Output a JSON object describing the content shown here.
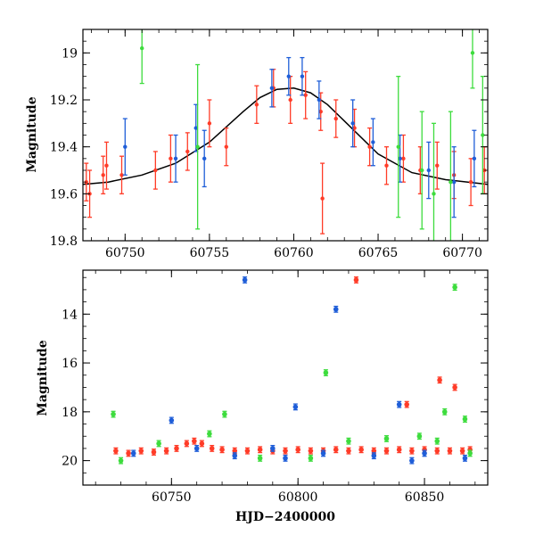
{
  "chart_data": [
    {
      "type": "scatter",
      "title": "",
      "xlabel": "",
      "ylabel": "Magnitude",
      "xlim": [
        60747.5,
        60771.5
      ],
      "ylim": [
        19.8,
        18.9
      ],
      "y_inverted": true,
      "x_ticks": [
        60750,
        60755,
        60760,
        60765,
        60770
      ],
      "x_tick_labels": [
        "60750",
        "60755",
        "60760",
        "60765",
        "60770"
      ],
      "y_ticks": [
        19.0,
        19.2,
        19.4,
        19.6,
        19.8
      ],
      "y_tick_labels": [
        "19",
        "19.2",
        "19.4",
        "19.6",
        "19.8"
      ],
      "grid": false,
      "legend": "none",
      "series": [
        {
          "color": "#ff3c28",
          "points": [
            {
              "x": 60747.7,
              "y": 19.55,
              "e": 0.08
            },
            {
              "x": 60747.9,
              "y": 19.6,
              "e": 0.1
            },
            {
              "x": 60748.7,
              "y": 19.52,
              "e": 0.08
            },
            {
              "x": 60748.9,
              "y": 19.48,
              "e": 0.1
            },
            {
              "x": 60749.8,
              "y": 19.52,
              "e": 0.08
            },
            {
              "x": 60751.8,
              "y": 19.5,
              "e": 0.08
            },
            {
              "x": 60752.7,
              "y": 19.45,
              "e": 0.1
            },
            {
              "x": 60753.7,
              "y": 19.42,
              "e": 0.08
            },
            {
              "x": 60755.0,
              "y": 19.3,
              "e": 0.1
            },
            {
              "x": 60756.0,
              "y": 19.4,
              "e": 0.08
            },
            {
              "x": 60757.8,
              "y": 19.22,
              "e": 0.08
            },
            {
              "x": 60758.8,
              "y": 19.15,
              "e": 0.08
            },
            {
              "x": 60759.8,
              "y": 19.2,
              "e": 0.1
            },
            {
              "x": 60760.7,
              "y": 19.18,
              "e": 0.1
            },
            {
              "x": 60761.6,
              "y": 19.25,
              "e": 0.08
            },
            {
              "x": 60762.5,
              "y": 19.28,
              "e": 0.08
            },
            {
              "x": 60763.6,
              "y": 19.32,
              "e": 0.08
            },
            {
              "x": 60764.5,
              "y": 19.4,
              "e": 0.08
            },
            {
              "x": 60765.5,
              "y": 19.48,
              "e": 0.08
            },
            {
              "x": 60766.5,
              "y": 19.45,
              "e": 0.1
            },
            {
              "x": 60767.5,
              "y": 19.5,
              "e": 0.1
            },
            {
              "x": 60768.5,
              "y": 19.48,
              "e": 0.1
            },
            {
              "x": 60769.5,
              "y": 19.52,
              "e": 0.1
            },
            {
              "x": 60770.5,
              "y": 19.55,
              "e": 0.1
            },
            {
              "x": 60771.3,
              "y": 19.5,
              "e": 0.1
            },
            {
              "x": 60761.7,
              "y": 19.62,
              "e": 0.15
            }
          ]
        },
        {
          "color": "#1f5ed8",
          "points": [
            {
              "x": 60750.0,
              "y": 19.4,
              "e": 0.12
            },
            {
              "x": 60753.0,
              "y": 19.45,
              "e": 0.1
            },
            {
              "x": 60754.2,
              "y": 19.32,
              "e": 0.1
            },
            {
              "x": 60754.7,
              "y": 19.45,
              "e": 0.12
            },
            {
              "x": 60758.7,
              "y": 19.15,
              "e": 0.08
            },
            {
              "x": 60759.7,
              "y": 19.1,
              "e": 0.08
            },
            {
              "x": 60760.5,
              "y": 19.1,
              "e": 0.08
            },
            {
              "x": 60761.5,
              "y": 19.2,
              "e": 0.08
            },
            {
              "x": 60763.5,
              "y": 19.3,
              "e": 0.1
            },
            {
              "x": 60764.7,
              "y": 19.38,
              "e": 0.1
            },
            {
              "x": 60766.3,
              "y": 19.45,
              "e": 0.1
            },
            {
              "x": 60768.0,
              "y": 19.5,
              "e": 0.12
            },
            {
              "x": 60769.5,
              "y": 19.55,
              "e": 0.15
            },
            {
              "x": 60770.7,
              "y": 19.45,
              "e": 0.12
            }
          ]
        },
        {
          "color": "#3ddc3d",
          "points": [
            {
              "x": 60751.0,
              "y": 18.98,
              "e": 0.15
            },
            {
              "x": 60754.3,
              "y": 19.4,
              "e": 0.35
            },
            {
              "x": 60766.2,
              "y": 19.4,
              "e": 0.3
            },
            {
              "x": 60767.6,
              "y": 19.5,
              "e": 0.25
            },
            {
              "x": 60768.3,
              "y": 19.6,
              "e": 0.3
            },
            {
              "x": 60769.3,
              "y": 19.55,
              "e": 0.3
            },
            {
              "x": 60770.6,
              "y": 19.0,
              "e": 0.15
            },
            {
              "x": 60771.2,
              "y": 19.35,
              "e": 0.25
            }
          ]
        }
      ],
      "model_curve": {
        "color": "#000000",
        "x": [
          60747.5,
          60749,
          60751,
          60753,
          60755,
          60757,
          60758,
          60759,
          60760,
          60761,
          60762,
          60763,
          60765,
          60767,
          60769,
          60771.5
        ],
        "y": [
          19.56,
          19.55,
          19.52,
          19.47,
          19.38,
          19.25,
          19.19,
          19.155,
          19.15,
          19.17,
          19.22,
          19.29,
          19.43,
          19.51,
          19.54,
          19.56
        ]
      }
    },
    {
      "type": "scatter",
      "title": "",
      "xlabel": "HJD−2400000",
      "ylabel": "Magnitude",
      "xlim": [
        60715,
        60875
      ],
      "ylim": [
        21.0,
        12.2
      ],
      "y_inverted": true,
      "x_ticks": [
        60750,
        60800,
        60850
      ],
      "x_tick_labels": [
        "60750",
        "60800",
        "60850"
      ],
      "y_ticks": [
        14,
        16,
        18,
        20
      ],
      "y_tick_labels": [
        "14",
        "16",
        "18",
        "20"
      ],
      "grid": false,
      "legend": "none",
      "series": [
        {
          "color": "#ff3c28",
          "points": [
            {
              "x": 60728,
              "y": 19.6
            },
            {
              "x": 60733,
              "y": 19.7
            },
            {
              "x": 60738,
              "y": 19.6
            },
            {
              "x": 60743,
              "y": 19.65
            },
            {
              "x": 60748,
              "y": 19.6
            },
            {
              "x": 60752,
              "y": 19.5
            },
            {
              "x": 60756,
              "y": 19.3
            },
            {
              "x": 60759,
              "y": 19.2
            },
            {
              "x": 60762,
              "y": 19.3
            },
            {
              "x": 60766,
              "y": 19.5
            },
            {
              "x": 60770,
              "y": 19.55
            },
            {
              "x": 60775,
              "y": 19.6
            },
            {
              "x": 60780,
              "y": 19.6
            },
            {
              "x": 60785,
              "y": 19.55
            },
            {
              "x": 60790,
              "y": 19.6
            },
            {
              "x": 60795,
              "y": 19.6
            },
            {
              "x": 60800,
              "y": 19.55
            },
            {
              "x": 60805,
              "y": 19.6
            },
            {
              "x": 60810,
              "y": 19.6
            },
            {
              "x": 60815,
              "y": 19.55
            },
            {
              "x": 60820,
              "y": 19.6
            },
            {
              "x": 60825,
              "y": 19.55
            },
            {
              "x": 60830,
              "y": 19.6
            },
            {
              "x": 60835,
              "y": 19.6
            },
            {
              "x": 60840,
              "y": 19.55
            },
            {
              "x": 60845,
              "y": 19.6
            },
            {
              "x": 60850,
              "y": 19.55
            },
            {
              "x": 60855,
              "y": 19.6
            },
            {
              "x": 60860,
              "y": 19.6
            },
            {
              "x": 60865,
              "y": 19.6
            },
            {
              "x": 60868,
              "y": 19.55
            },
            {
              "x": 60823,
              "y": 12.6
            },
            {
              "x": 60856,
              "y": 16.7
            },
            {
              "x": 60862,
              "y": 17.0
            },
            {
              "x": 60843,
              "y": 17.7
            }
          ]
        },
        {
          "color": "#1f5ed8",
          "points": [
            {
              "x": 60750,
              "y": 18.35
            },
            {
              "x": 60779,
              "y": 12.6
            },
            {
              "x": 60799,
              "y": 17.8
            },
            {
              "x": 60815,
              "y": 13.8
            },
            {
              "x": 60840,
              "y": 17.7
            },
            {
              "x": 60735,
              "y": 19.7
            },
            {
              "x": 60760,
              "y": 19.5
            },
            {
              "x": 60775,
              "y": 19.8
            },
            {
              "x": 60795,
              "y": 19.9
            },
            {
              "x": 60810,
              "y": 19.7
            },
            {
              "x": 60830,
              "y": 19.8
            },
            {
              "x": 60850,
              "y": 19.7
            },
            {
              "x": 60866,
              "y": 19.9
            },
            {
              "x": 60845,
              "y": 20.0
            },
            {
              "x": 60790,
              "y": 19.5
            }
          ]
        },
        {
          "color": "#3ddc3d",
          "points": [
            {
              "x": 60727,
              "y": 18.1
            },
            {
              "x": 60771,
              "y": 18.1
            },
            {
              "x": 60811,
              "y": 16.4
            },
            {
              "x": 60862,
              "y": 12.9
            },
            {
              "x": 60858,
              "y": 18.0
            },
            {
              "x": 60866,
              "y": 18.3
            },
            {
              "x": 60730,
              "y": 20.0
            },
            {
              "x": 60745,
              "y": 19.3
            },
            {
              "x": 60765,
              "y": 18.9
            },
            {
              "x": 60785,
              "y": 19.9
            },
            {
              "x": 60805,
              "y": 19.9
            },
            {
              "x": 60820,
              "y": 19.2
            },
            {
              "x": 60835,
              "y": 19.1
            },
            {
              "x": 60848,
              "y": 19.0
            },
            {
              "x": 60855,
              "y": 19.2
            },
            {
              "x": 60868,
              "y": 19.7
            }
          ]
        }
      ]
    }
  ]
}
